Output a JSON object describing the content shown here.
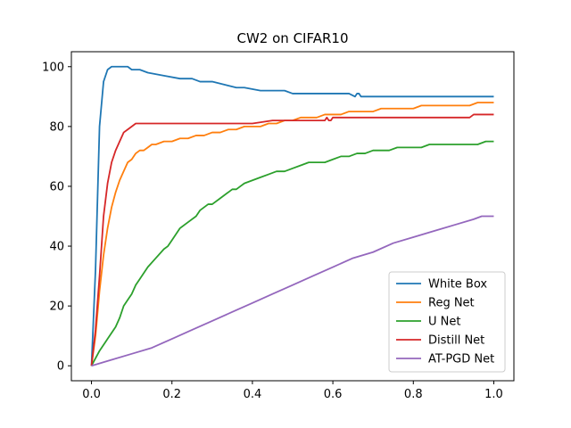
{
  "chart_data": {
    "type": "line",
    "title": "CW2 on CIFAR10",
    "xlabel": "",
    "ylabel": "",
    "xlim": [
      -0.05,
      1.05
    ],
    "ylim": [
      -5,
      105
    ],
    "xticks": [
      0.0,
      0.2,
      0.4,
      0.6,
      0.8,
      1.0
    ],
    "xtick_labels": [
      "0.0",
      "0.2",
      "0.4",
      "0.6",
      "0.8",
      "1.0"
    ],
    "yticks": [
      0,
      20,
      40,
      60,
      80,
      100
    ],
    "ytick_labels": [
      "0",
      "20",
      "40",
      "60",
      "80",
      "100"
    ],
    "grid": false,
    "legend_position": "lower-right",
    "series": [
      {
        "name": "White Box",
        "color": "#1f77b4",
        "x": [
          0.0,
          0.01,
          0.02,
          0.03,
          0.04,
          0.05,
          0.06,
          0.07,
          0.08,
          0.09,
          0.1,
          0.12,
          0.14,
          0.18,
          0.22,
          0.25,
          0.27,
          0.3,
          0.33,
          0.36,
          0.38,
          0.42,
          0.46,
          0.48,
          0.5,
          0.52,
          0.55,
          0.58,
          0.61,
          0.64,
          0.655,
          0.66,
          0.665,
          0.67,
          0.7,
          0.75,
          0.8,
          0.85,
          0.9,
          0.95,
          1.0
        ],
        "y": [
          0,
          32,
          80,
          95,
          99,
          100,
          100,
          100,
          100,
          100,
          99,
          99,
          98,
          97,
          96,
          96,
          95,
          95,
          94,
          93,
          93,
          92,
          92,
          92,
          91,
          91,
          91,
          91,
          91,
          91,
          90,
          91,
          91,
          90,
          90,
          90,
          90,
          90,
          90,
          90,
          90
        ]
      },
      {
        "name": "Reg Net",
        "color": "#ff7f0e",
        "x": [
          0.0,
          0.01,
          0.02,
          0.03,
          0.04,
          0.05,
          0.06,
          0.07,
          0.08,
          0.09,
          0.1,
          0.11,
          0.12,
          0.13,
          0.14,
          0.15,
          0.16,
          0.18,
          0.2,
          0.22,
          0.24,
          0.26,
          0.28,
          0.3,
          0.32,
          0.34,
          0.36,
          0.38,
          0.4,
          0.42,
          0.44,
          0.46,
          0.48,
          0.5,
          0.52,
          0.54,
          0.56,
          0.58,
          0.6,
          0.62,
          0.64,
          0.66,
          0.68,
          0.7,
          0.72,
          0.74,
          0.76,
          0.78,
          0.8,
          0.82,
          0.84,
          0.86,
          0.88,
          0.9,
          0.92,
          0.94,
          0.96,
          0.98,
          1.0
        ],
        "y": [
          0,
          10,
          25,
          37,
          46,
          53,
          58,
          62,
          65,
          68,
          69,
          71,
          72,
          72,
          73,
          74,
          74,
          75,
          75,
          76,
          76,
          77,
          77,
          78,
          78,
          79,
          79,
          80,
          80,
          80,
          81,
          81,
          82,
          82,
          83,
          83,
          83,
          84,
          84,
          84,
          85,
          85,
          85,
          85,
          86,
          86,
          86,
          86,
          86,
          87,
          87,
          87,
          87,
          87,
          87,
          87,
          88,
          88,
          88
        ]
      },
      {
        "name": "U Net",
        "color": "#2ca02c",
        "x": [
          0.0,
          0.02,
          0.04,
          0.06,
          0.07,
          0.08,
          0.09,
          0.1,
          0.11,
          0.12,
          0.14,
          0.16,
          0.18,
          0.19,
          0.2,
          0.22,
          0.24,
          0.26,
          0.27,
          0.28,
          0.29,
          0.3,
          0.32,
          0.34,
          0.35,
          0.36,
          0.37,
          0.38,
          0.4,
          0.42,
          0.44,
          0.46,
          0.48,
          0.5,
          0.52,
          0.54,
          0.56,
          0.58,
          0.6,
          0.62,
          0.64,
          0.66,
          0.68,
          0.7,
          0.72,
          0.74,
          0.76,
          0.78,
          0.8,
          0.82,
          0.84,
          0.86,
          0.88,
          0.9,
          0.92,
          0.94,
          0.96,
          0.98,
          1.0
        ],
        "y": [
          0,
          5,
          9,
          13,
          16,
          20,
          22,
          24,
          27,
          29,
          33,
          36,
          39,
          40,
          42,
          46,
          48,
          50,
          52,
          53,
          54,
          54,
          56,
          58,
          59,
          59,
          60,
          61,
          62,
          63,
          64,
          65,
          65,
          66,
          67,
          68,
          68,
          68,
          69,
          70,
          70,
          71,
          71,
          72,
          72,
          72,
          73,
          73,
          73,
          73,
          74,
          74,
          74,
          74,
          74,
          74,
          74,
          75,
          75
        ]
      },
      {
        "name": "Distill Net",
        "color": "#d62728",
        "x": [
          0.0,
          0.01,
          0.02,
          0.03,
          0.04,
          0.05,
          0.06,
          0.07,
          0.08,
          0.09,
          0.1,
          0.11,
          0.12,
          0.15,
          0.2,
          0.3,
          0.4,
          0.45,
          0.5,
          0.55,
          0.58,
          0.585,
          0.59,
          0.595,
          0.6,
          0.62,
          0.65,
          0.7,
          0.75,
          0.8,
          0.85,
          0.9,
          0.94,
          0.95,
          0.97,
          1.0
        ],
        "y": [
          0,
          12,
          30,
          50,
          61,
          68,
          72,
          75,
          78,
          79,
          80,
          81,
          81,
          81,
          81,
          81,
          81,
          82,
          82,
          82,
          82,
          83,
          82,
          82,
          83,
          83,
          83,
          83,
          83,
          83,
          83,
          83,
          83,
          84,
          84,
          84
        ]
      },
      {
        "name": "AT-PGD Net",
        "color": "#9467bd",
        "x": [
          0.0,
          0.05,
          0.1,
          0.15,
          0.2,
          0.25,
          0.3,
          0.35,
          0.4,
          0.45,
          0.5,
          0.55,
          0.6,
          0.65,
          0.7,
          0.75,
          0.8,
          0.85,
          0.9,
          0.95,
          0.97,
          1.0
        ],
        "y": [
          0,
          2,
          4,
          6,
          9,
          12,
          15,
          18,
          21,
          24,
          27,
          30,
          33,
          36,
          38,
          41,
          43,
          45,
          47,
          49,
          50,
          50
        ]
      }
    ]
  }
}
